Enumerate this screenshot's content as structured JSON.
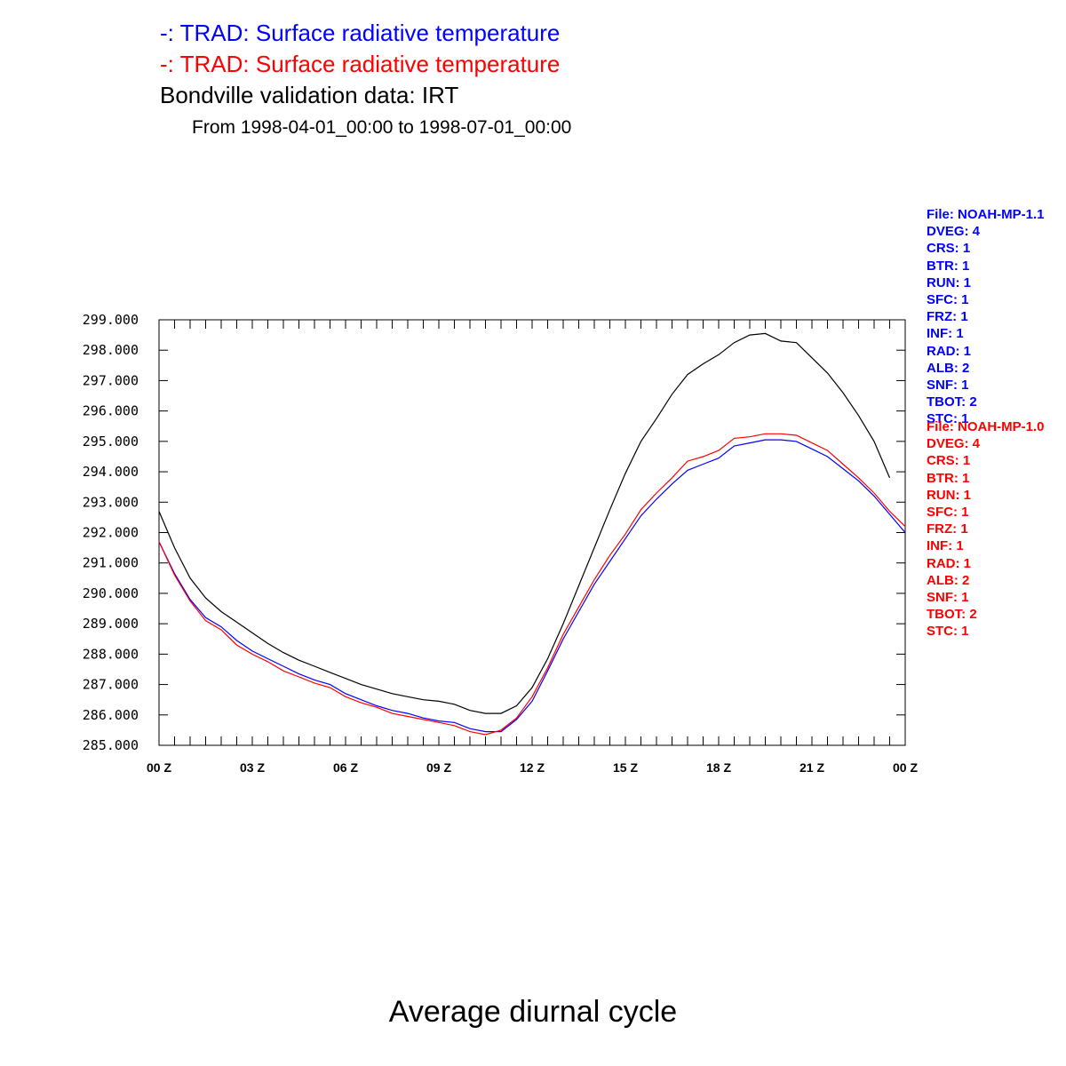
{
  "titles": {
    "line1": "-: TRAD: Surface radiative temperature",
    "line2": "-: TRAD: Surface radiative temperature",
    "line3": "Bondville validation data: IRT",
    "line4": "From 1998-04-01_00:00 to 1998-07-01_00:00",
    "bottom": "Average diurnal cycle"
  },
  "info_blue": [
    "File: NOAH-MP-1.1",
    "DVEG: 4",
    "CRS: 1",
    "BTR: 1",
    "RUN: 1",
    "SFC: 1",
    "FRZ: 1",
    "INF: 1",
    "RAD: 1",
    "ALB: 2",
    "SNF: 1",
    "TBOT: 2",
    "STC: 1"
  ],
  "info_red": [
    "File: NOAH-MP-1.0",
    "DVEG: 4",
    "CRS: 1",
    "BTR: 1",
    "RUN: 1",
    "SFC: 1",
    "FRZ: 1",
    "INF: 1",
    "RAD: 1",
    "ALB: 2",
    "SNF: 1",
    "TBOT: 2",
    "STC: 1"
  ],
  "chart_data": {
    "type": "line",
    "xlim": [
      0,
      24
    ],
    "ylim": [
      285,
      299
    ],
    "y_ticks": [
      "285.000",
      "286.000",
      "287.000",
      "288.000",
      "289.000",
      "290.000",
      "291.000",
      "292.000",
      "293.000",
      "294.000",
      "295.000",
      "296.000",
      "297.000",
      "298.000",
      "299.000"
    ],
    "x_ticks": [
      {
        "value": 0,
        "label": "00 Z"
      },
      {
        "value": 3,
        "label": "03 Z"
      },
      {
        "value": 6,
        "label": "06 Z"
      },
      {
        "value": 9,
        "label": "09 Z"
      },
      {
        "value": 12,
        "label": "12 Z"
      },
      {
        "value": 15,
        "label": "15 Z"
      },
      {
        "value": 18,
        "label": "18 Z"
      },
      {
        "value": 21,
        "label": "21 Z"
      },
      {
        "value": 24,
        "label": "00 Z"
      }
    ],
    "x_minor_step": 0.5,
    "series": [
      {
        "color": "#000000",
        "x": [
          0,
          0.5,
          1,
          1.5,
          2,
          2.5,
          3,
          3.5,
          4,
          4.5,
          5,
          5.5,
          6,
          6.5,
          7,
          7.5,
          8,
          8.5,
          9,
          9.5,
          10,
          10.5,
          11,
          11.5,
          12,
          12.5,
          13,
          13.5,
          14,
          14.5,
          15,
          15.5,
          16,
          16.5,
          17,
          17.5,
          18,
          18.5,
          19,
          19.5,
          20,
          20.5,
          21,
          21.5,
          22,
          22.5,
          23,
          23.5
        ],
        "y": [
          292.7,
          291.5,
          290.5,
          289.85,
          289.4,
          289.05,
          288.7,
          288.35,
          288.05,
          287.8,
          287.6,
          287.4,
          287.2,
          287.0,
          286.85,
          286.7,
          286.6,
          286.5,
          286.45,
          286.35,
          286.15,
          286.05,
          286.05,
          286.3,
          286.9,
          287.85,
          289.0,
          290.25,
          291.5,
          292.75,
          293.95,
          295.0,
          295.75,
          296.55,
          297.2,
          297.55,
          297.85,
          298.25,
          298.5,
          298.55,
          298.3,
          298.25,
          297.75,
          297.25,
          296.6,
          295.85,
          295.0,
          293.8
        ]
      },
      {
        "color": "#0000ff",
        "x": [
          0,
          0.5,
          1,
          1.5,
          2,
          2.5,
          3,
          3.5,
          4,
          4.5,
          5,
          5.5,
          6,
          6.5,
          7,
          7.5,
          8,
          8.5,
          9,
          9.5,
          10,
          10.5,
          11,
          11.5,
          12,
          12.5,
          13,
          13.5,
          14,
          14.5,
          15,
          15.5,
          16,
          16.5,
          17,
          17.5,
          18,
          18.5,
          19,
          19.5,
          20,
          20.5,
          21,
          21.5,
          22,
          22.5,
          23,
          23.5,
          24
        ],
        "y": [
          291.7,
          290.65,
          289.8,
          289.2,
          288.9,
          288.45,
          288.1,
          287.85,
          287.6,
          287.35,
          287.15,
          287.0,
          286.7,
          286.5,
          286.3,
          286.15,
          286.05,
          285.9,
          285.8,
          285.75,
          285.55,
          285.45,
          285.45,
          285.85,
          286.45,
          287.45,
          288.5,
          289.4,
          290.3,
          291.05,
          291.8,
          292.55,
          293.1,
          293.6,
          294.05,
          294.25,
          294.45,
          294.85,
          294.95,
          295.05,
          295.05,
          295.0,
          294.75,
          294.5,
          294.1,
          293.7,
          293.2,
          292.6,
          292.0
        ]
      },
      {
        "color": "#ff0000",
        "x": [
          0,
          0.5,
          1,
          1.5,
          2,
          2.5,
          3,
          3.5,
          4,
          4.5,
          5,
          5.5,
          6,
          6.5,
          7,
          7.5,
          8,
          8.5,
          9,
          9.5,
          10,
          10.5,
          11,
          11.5,
          12,
          12.5,
          13,
          13.5,
          14,
          14.5,
          15,
          15.5,
          16,
          16.5,
          17,
          17.5,
          18,
          18.5,
          19,
          19.5,
          20,
          20.5,
          21,
          21.5,
          22,
          22.5,
          23,
          23.5,
          24
        ],
        "y": [
          291.7,
          290.6,
          289.75,
          289.1,
          288.8,
          288.3,
          288.0,
          287.75,
          287.45,
          287.25,
          287.05,
          286.9,
          286.6,
          286.4,
          286.25,
          286.05,
          285.95,
          285.85,
          285.75,
          285.65,
          285.45,
          285.35,
          285.5,
          285.9,
          286.6,
          287.55,
          288.65,
          289.55,
          290.45,
          291.25,
          291.95,
          292.75,
          293.3,
          293.8,
          294.35,
          294.5,
          294.7,
          295.1,
          295.15,
          295.25,
          295.25,
          295.2,
          294.95,
          294.7,
          294.25,
          293.8,
          293.3,
          292.7,
          292.2
        ]
      }
    ]
  }
}
